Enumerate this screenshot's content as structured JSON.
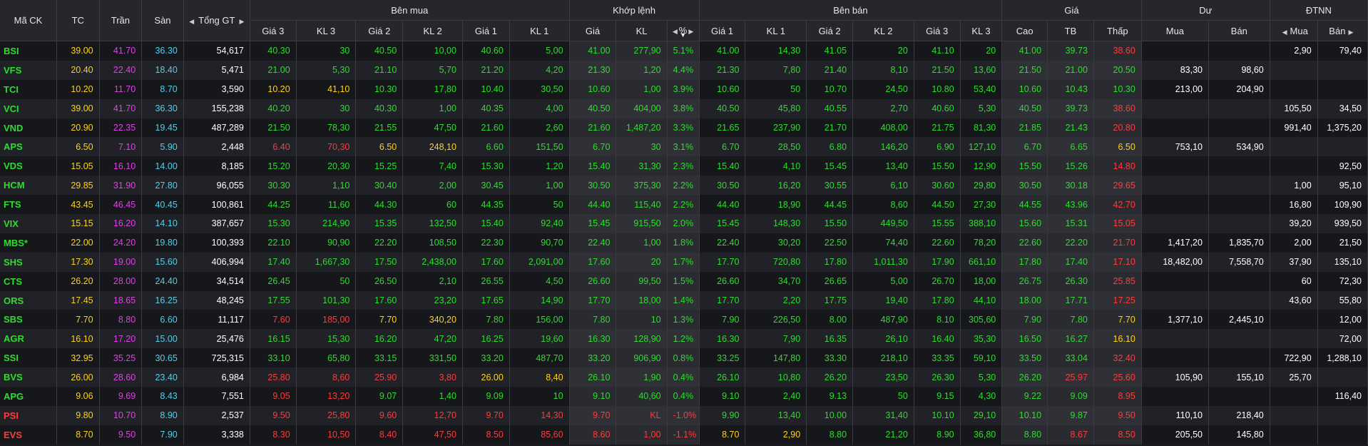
{
  "colors": {
    "up": "#2fdc2f",
    "down": "#ff3b3b",
    "ref": "#ffd21a",
    "ceil": "#e040e8",
    "floor": "#4fd0ec",
    "neutral": "#ffffff"
  },
  "headers": {
    "symbol": "Mã CK",
    "ref": "TC",
    "ceiling": "Trần",
    "floor": "Sàn",
    "total_value": "Tổng GT",
    "buy_side": "Bên mua",
    "matched": "Khớp lệnh",
    "sell_side": "Bên bán",
    "price": "Giá",
    "remaining": "Dư",
    "foreign": "ĐTNN",
    "sub": {
      "bp3": "Giá 3",
      "bv3": "KL 3",
      "bp2": "Giá 2",
      "bv2": "KL 2",
      "bp1": "Giá 1",
      "bv1": "KL 1",
      "mp": "Giá",
      "mv": "KL",
      "pct": "%",
      "sp1": "Giá 1",
      "sv1": "KL 1",
      "sp2": "Giá 2",
      "sv2": "KL 2",
      "sp3": "Giá 3",
      "sv3": "KL 3",
      "high": "Cao",
      "avg": "TB",
      "low": "Thấp",
      "rem_buy": "Mua",
      "rem_sell": "Bán",
      "f_buy": "Mua",
      "f_sell": "Bán"
    }
  },
  "rows": [
    [
      "BSI",
      "39.00",
      "41.70",
      "36.30",
      "54,617",
      "40.30",
      "30",
      "40.50",
      "10,00",
      "40.60",
      "5,00",
      "41.00",
      "277,90",
      "5.1%",
      "41.00",
      "14,30",
      "41.05",
      "20",
      "41.10",
      "20",
      "41.00",
      "39.73",
      "38.60",
      "",
      "",
      "2,90",
      "79,40"
    ],
    [
      "VFS",
      "20.40",
      "22.40",
      "18.40",
      "5,471",
      "21.00",
      "5,30",
      "21.10",
      "5,70",
      "21.20",
      "4,20",
      "21.30",
      "1,20",
      "4.4%",
      "21.30",
      "7,80",
      "21.40",
      "8,10",
      "21.50",
      "13,60",
      "21.50",
      "21.00",
      "20.50",
      "83,30",
      "98,60",
      "",
      ""
    ],
    [
      "TCI",
      "10.20",
      "11.70",
      "8.70",
      "3,590",
      "10.20",
      "41,10",
      "10.30",
      "17,80",
      "10.40",
      "30,50",
      "10.60",
      "1,00",
      "3.9%",
      "10.60",
      "50",
      "10.70",
      "24,50",
      "10.80",
      "53,40",
      "10.60",
      "10.43",
      "10.30",
      "213,00",
      "204,90",
      "",
      ""
    ],
    [
      "VCI",
      "39.00",
      "41.70",
      "36.30",
      "155,238",
      "40.20",
      "30",
      "40.30",
      "1,00",
      "40.35",
      "4,00",
      "40.50",
      "404,00",
      "3.8%",
      "40.50",
      "45,80",
      "40.55",
      "2,70",
      "40.60",
      "5,30",
      "40.50",
      "39.73",
      "38.60",
      "",
      "",
      "105,50",
      "34,50"
    ],
    [
      "VND",
      "20.90",
      "22.35",
      "19.45",
      "487,289",
      "21.50",
      "78,30",
      "21.55",
      "47,50",
      "21.60",
      "2,60",
      "21.60",
      "1,487,20",
      "3.3%",
      "21.65",
      "237,90",
      "21.70",
      "408,00",
      "21.75",
      "81,30",
      "21.85",
      "21.43",
      "20.80",
      "",
      "",
      "991,40",
      "1,375,20"
    ],
    [
      "APS",
      "6.50",
      "7.10",
      "5.90",
      "2,448",
      "6.40",
      "70,30",
      "6.50",
      "248,10",
      "6.60",
      "151,50",
      "6.70",
      "30",
      "3.1%",
      "6.70",
      "28,50",
      "6.80",
      "146,20",
      "6.90",
      "127,10",
      "6.70",
      "6.65",
      "6.50",
      "753,10",
      "534,90",
      "",
      ""
    ],
    [
      "VDS",
      "15.05",
      "16.10",
      "14.00",
      "8,185",
      "15.20",
      "20,30",
      "15.25",
      "7,40",
      "15.30",
      "1,20",
      "15.40",
      "31,30",
      "2.3%",
      "15.40",
      "4,10",
      "15.45",
      "13,40",
      "15.50",
      "12,90",
      "15.50",
      "15.26",
      "14.80",
      "",
      "",
      "",
      "92,50"
    ],
    [
      "HCM",
      "29.85",
      "31.90",
      "27.80",
      "96,055",
      "30.30",
      "1,10",
      "30.40",
      "2,00",
      "30.45",
      "1,00",
      "30.50",
      "375,30",
      "2.2%",
      "30.50",
      "16,20",
      "30.55",
      "6,10",
      "30.60",
      "29,80",
      "30.50",
      "30.18",
      "29.65",
      "",
      "",
      "1,00",
      "95,10"
    ],
    [
      "FTS",
      "43.45",
      "46.45",
      "40.45",
      "100,861",
      "44.25",
      "11,60",
      "44.30",
      "60",
      "44.35",
      "50",
      "44.40",
      "115,40",
      "2.2%",
      "44.40",
      "18,90",
      "44.45",
      "8,60",
      "44.50",
      "27,30",
      "44.55",
      "43.96",
      "42.70",
      "",
      "",
      "16,80",
      "109,90"
    ],
    [
      "VIX",
      "15.15",
      "16.20",
      "14.10",
      "387,657",
      "15.30",
      "214,90",
      "15.35",
      "132,50",
      "15.40",
      "92,40",
      "15.45",
      "915,50",
      "2.0%",
      "15.45",
      "148,30",
      "15.50",
      "449,50",
      "15.55",
      "388,10",
      "15.60",
      "15.31",
      "15.05",
      "",
      "",
      "39,20",
      "939,50"
    ],
    [
      "MBS*",
      "22.00",
      "24.20",
      "19.80",
      "100,393",
      "22.10",
      "90,90",
      "22.20",
      "108,50",
      "22.30",
      "90,70",
      "22.40",
      "1,00",
      "1.8%",
      "22.40",
      "30,20",
      "22.50",
      "74,40",
      "22.60",
      "78,20",
      "22.60",
      "22.20",
      "21.70",
      "1,417,20",
      "1,835,70",
      "2,00",
      "21,50"
    ],
    [
      "SHS",
      "17.30",
      "19.00",
      "15.60",
      "406,994",
      "17.40",
      "1,667,30",
      "17.50",
      "2,438,00",
      "17.60",
      "2,091,00",
      "17.60",
      "20",
      "1.7%",
      "17.70",
      "720,80",
      "17.80",
      "1,011,30",
      "17.90",
      "661,10",
      "17.80",
      "17.40",
      "17.10",
      "18,482,00",
      "7,558,70",
      "37,90",
      "135,10"
    ],
    [
      "CTS",
      "26.20",
      "28.00",
      "24.40",
      "34,514",
      "26.45",
      "50",
      "26.50",
      "2,10",
      "26.55",
      "4,50",
      "26.60",
      "99,50",
      "1.5%",
      "26.60",
      "34,70",
      "26.65",
      "5,00",
      "26.70",
      "18,00",
      "26.75",
      "26.30",
      "25.85",
      "",
      "",
      "60",
      "72,30"
    ],
    [
      "ORS",
      "17.45",
      "18.65",
      "16.25",
      "48,245",
      "17.55",
      "101,30",
      "17.60",
      "23,20",
      "17.65",
      "14,90",
      "17.70",
      "18,00",
      "1.4%",
      "17.70",
      "2,20",
      "17.75",
      "19,40",
      "17.80",
      "44,10",
      "18.00",
      "17.71",
      "17.25",
      "",
      "",
      "43,60",
      "55,80"
    ],
    [
      "SBS",
      "7.70",
      "8.80",
      "6.60",
      "11,117",
      "7.60",
      "185,00",
      "7.70",
      "340,20",
      "7.80",
      "156,00",
      "7.80",
      "10",
      "1.3%",
      "7.90",
      "226,50",
      "8.00",
      "487,90",
      "8.10",
      "305,60",
      "7.90",
      "7.80",
      "7.70",
      "1,377,10",
      "2,445,10",
      "",
      "12,00"
    ],
    [
      "AGR",
      "16.10",
      "17.20",
      "15.00",
      "25,476",
      "16.15",
      "15,30",
      "16.20",
      "47,20",
      "16.25",
      "19,60",
      "16.30",
      "128,90",
      "1.2%",
      "16.30",
      "7,90",
      "16.35",
      "26,10",
      "16.40",
      "35,30",
      "16.50",
      "16.27",
      "16.10",
      "",
      "",
      "",
      "72,00"
    ],
    [
      "SSI",
      "32.95",
      "35.25",
      "30.65",
      "725,315",
      "33.10",
      "65,80",
      "33.15",
      "331,50",
      "33.20",
      "487,70",
      "33.20",
      "906,90",
      "0.8%",
      "33.25",
      "147,80",
      "33.30",
      "218,10",
      "33.35",
      "59,10",
      "33.50",
      "33.04",
      "32.40",
      "",
      "",
      "722,90",
      "1,288,10"
    ],
    [
      "BVS",
      "26.00",
      "28.60",
      "23.40",
      "6,984",
      "25.80",
      "8,60",
      "25.90",
      "3,80",
      "26.00",
      "8,40",
      "26.10",
      "1,90",
      "0.4%",
      "26.10",
      "10,80",
      "26.20",
      "23,50",
      "26.30",
      "5,30",
      "26.20",
      "25.97",
      "25.60",
      "105,90",
      "155,10",
      "25,70",
      ""
    ],
    [
      "APG",
      "9.06",
      "9.69",
      "8.43",
      "7,551",
      "9.05",
      "13,20",
      "9.07",
      "1,40",
      "9.09",
      "10",
      "9.10",
      "40,60",
      "0.4%",
      "9.10",
      "2,40",
      "9.13",
      "50",
      "9.15",
      "4,30",
      "9.22",
      "9.09",
      "8.95",
      "",
      "",
      "",
      "116,40"
    ],
    [
      "PSI",
      "9.80",
      "10.70",
      "8.90",
      "2,537",
      "9.50",
      "25,80",
      "9.60",
      "12,70",
      "9.70",
      "14,30",
      "9.70",
      "KL",
      "-1.0%",
      "9.90",
      "13,40",
      "10.00",
      "31,40",
      "10.10",
      "29,10",
      "10.10",
      "9.87",
      "9.50",
      "110,10",
      "218,40",
      "",
      ""
    ],
    [
      "EVS",
      "8.70",
      "9.50",
      "7.90",
      "3,338",
      "8.30",
      "10,50",
      "8.40",
      "47,50",
      "8.50",
      "85,60",
      "8.60",
      "1,00",
      "-1.1%",
      "8.70",
      "2,90",
      "8.80",
      "21,20",
      "8.90",
      "36,80",
      "8.80",
      "8.67",
      "8.50",
      "205,50",
      "145,80",
      "",
      ""
    ]
  ]
}
